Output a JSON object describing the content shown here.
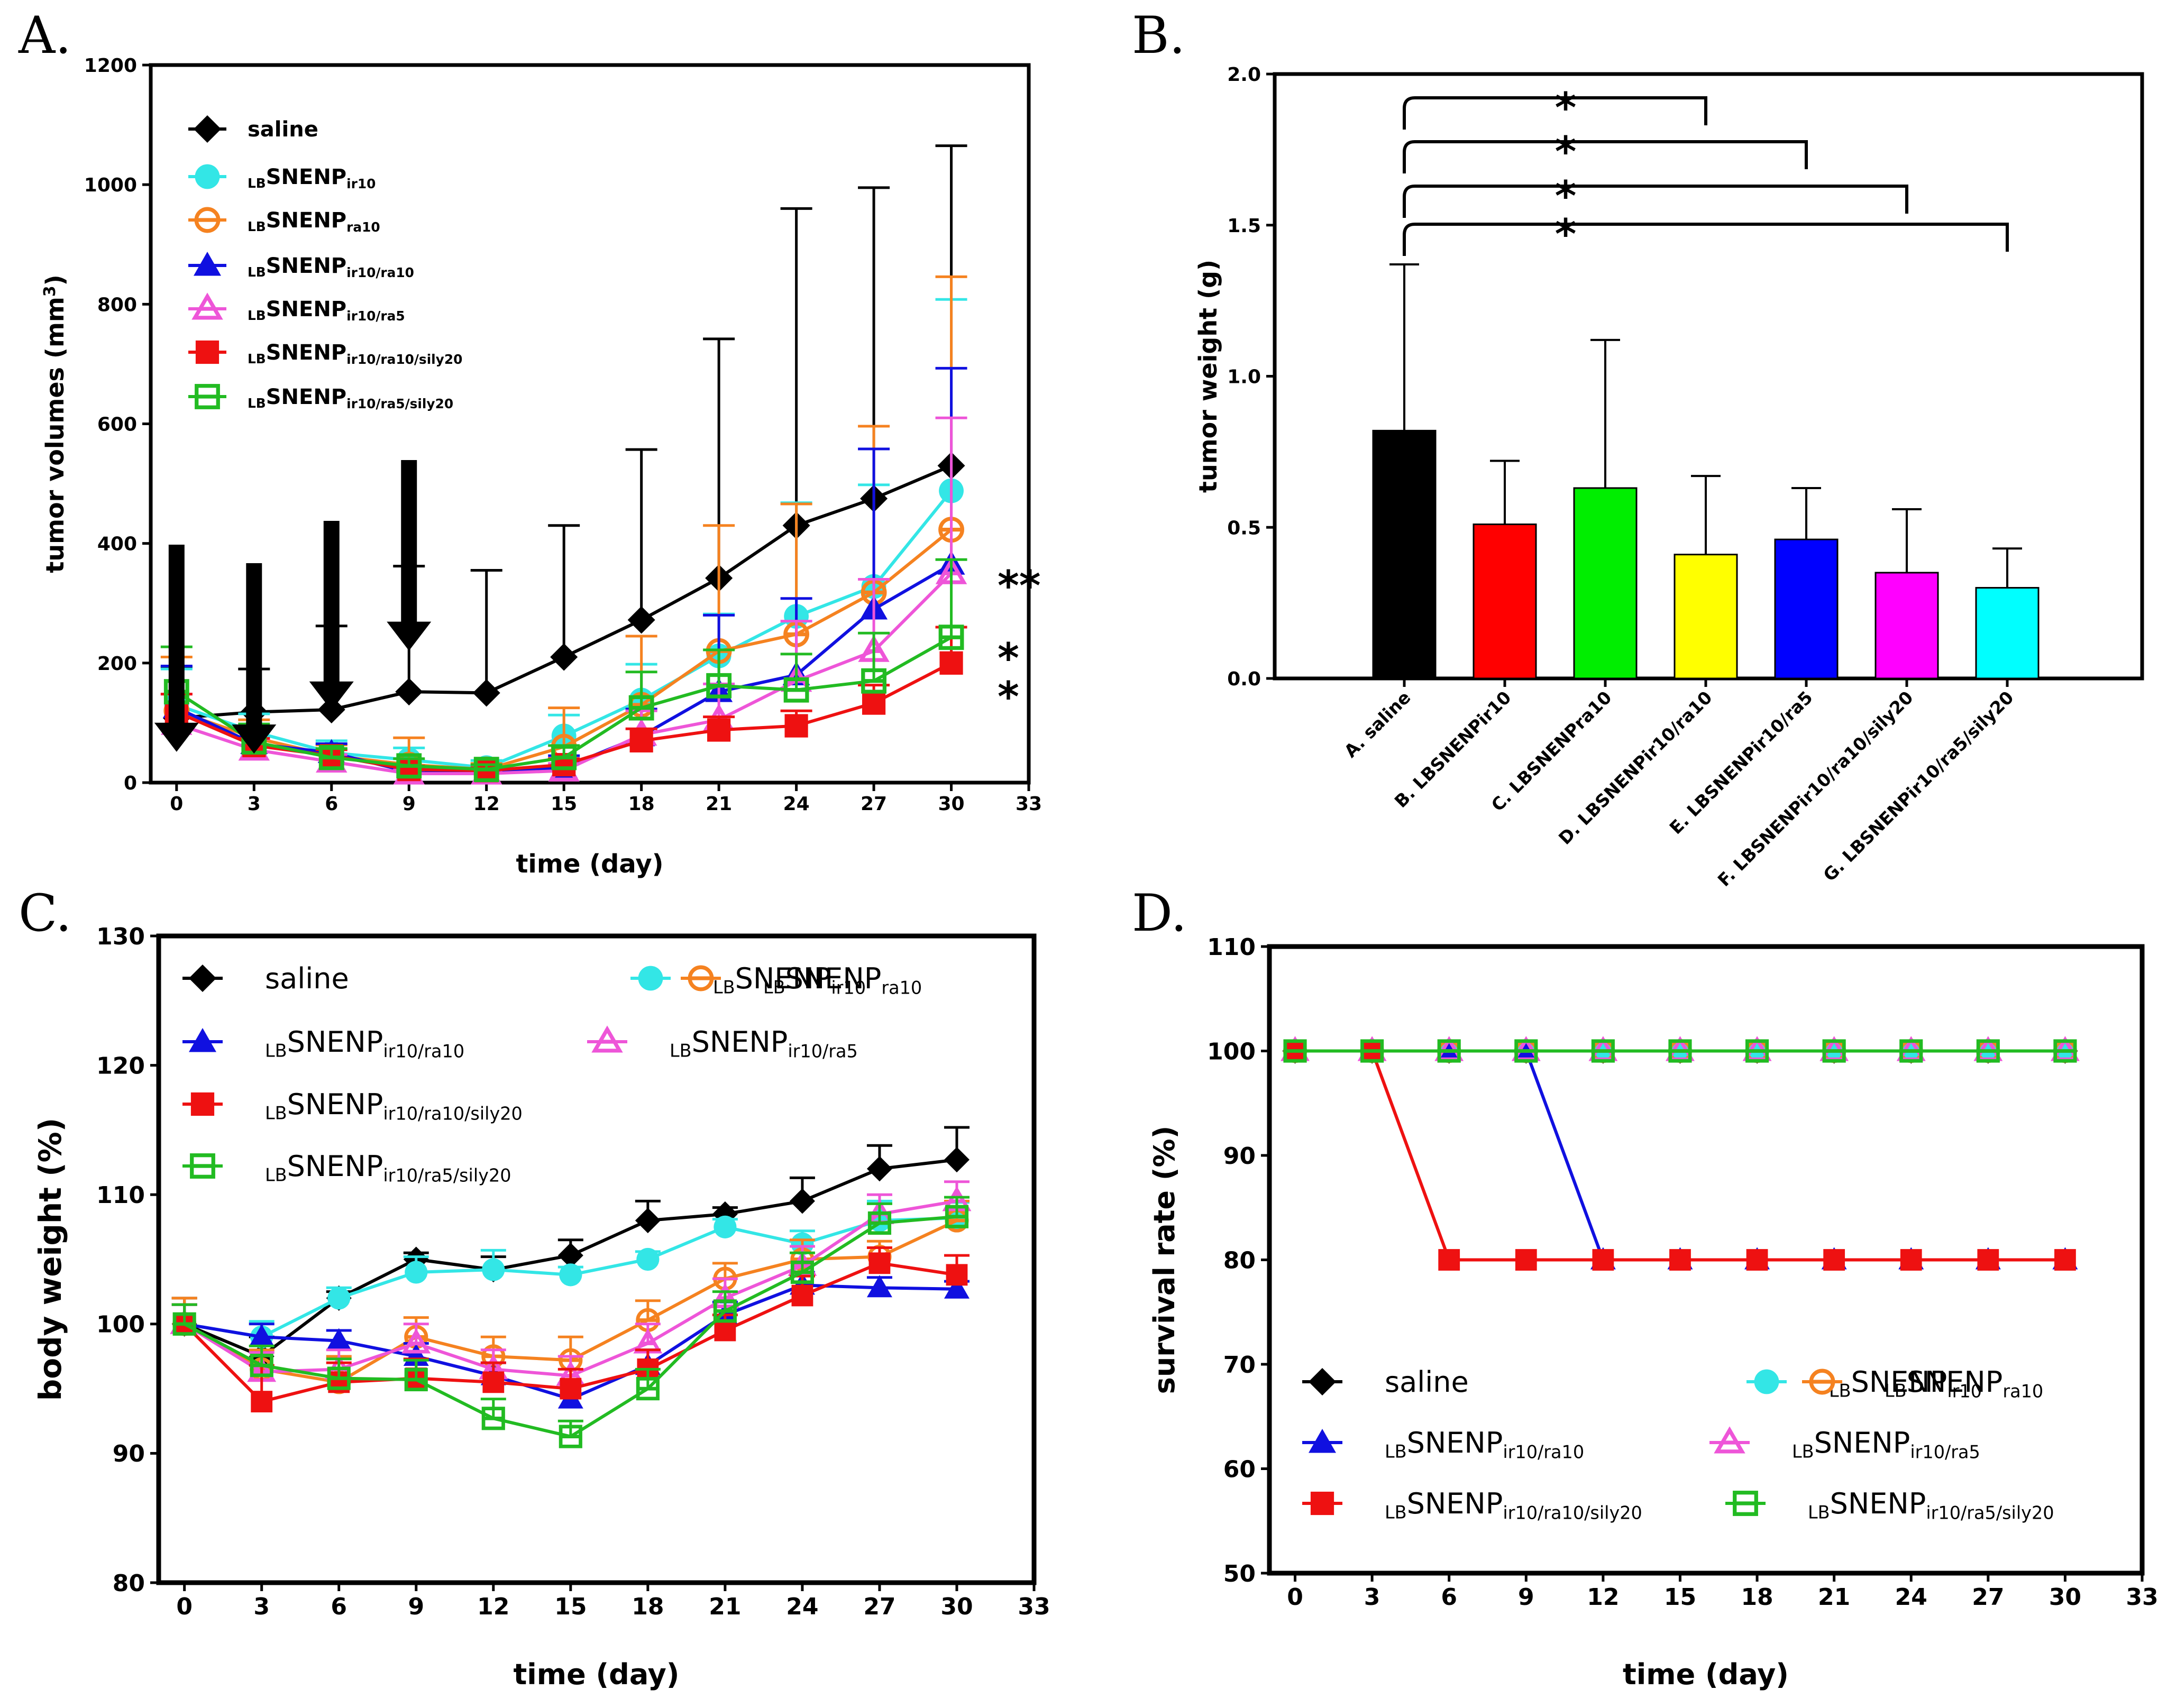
{
  "chart_data": [
    {
      "id": "A",
      "panel_label": "A.",
      "type": "line",
      "xlabel": "time (day)",
      "ylabel": "tumor volumes (mm",
      "ylabel_sup": "3",
      "ylabel_end": ")",
      "xlim": [
        -1,
        33
      ],
      "ylim": [
        0,
        1200
      ],
      "xticks": [
        0,
        3,
        6,
        9,
        12,
        15,
        18,
        21,
        24,
        27,
        30,
        33
      ],
      "yticks": [
        0,
        200,
        400,
        600,
        800,
        1000,
        1200
      ],
      "x": [
        0,
        3,
        6,
        9,
        12,
        15,
        18,
        21,
        24,
        27,
        30
      ],
      "treatment_arrows_days": [
        0,
        3,
        6,
        9
      ],
      "significance": [
        {
          "text": "**",
          "near": "LBSNENPir10/ra10 and LBSNENPir10/ra5"
        },
        {
          "text": "*",
          "near": "LBSNENPir10/ra5/sily20"
        },
        {
          "text": "*",
          "near": "LBSNENPir10/ra10/sily20"
        }
      ],
      "series": [
        {
          "key": "saline",
          "name": "saline",
          "color": "#000000",
          "marker": "diamond",
          "values": [
            108,
            118,
            122,
            152,
            150,
            210,
            272,
            342,
            430,
            475,
            530
          ],
          "err": [
            85,
            72,
            140,
            210,
            205,
            220,
            285,
            400,
            530,
            520,
            535
          ]
        },
        {
          "key": "ir10",
          "name_sub1": "LB",
          "name_main": "SNENP",
          "name_sub2": "ir10",
          "color": "#33E6E6",
          "marker": "circle",
          "values": [
            130,
            85,
            50,
            38,
            25,
            78,
            138,
            212,
            278,
            328,
            488
          ],
          "err": [
            60,
            30,
            20,
            20,
            12,
            35,
            60,
            70,
            190,
            170,
            320
          ]
        },
        {
          "key": "ra10",
          "name_sub1": "LB",
          "name_main": "SNENP",
          "name_sub2": "ra10",
          "color": "#F58220",
          "marker": "circle-open",
          "values": [
            120,
            75,
            45,
            30,
            22,
            60,
            130,
            220,
            248,
            318,
            423
          ],
          "err": [
            90,
            30,
            18,
            45,
            10,
            65,
            115,
            210,
            218,
            278,
            423
          ]
        },
        {
          "key": "ir10ra10",
          "name_sub1": "LB",
          "name_main": "SNENP",
          "name_sub2": "ir10/ra10",
          "color": "#1010E0",
          "marker": "triangle",
          "values": [
            125,
            65,
            50,
            18,
            18,
            25,
            78,
            152,
            180,
            290,
            365
          ],
          "err": [
            70,
            25,
            15,
            8,
            6,
            20,
            45,
            128,
            128,
            268,
            328
          ]
        },
        {
          "key": "ir10ra5",
          "name_sub1": "LB",
          "name_main": "SNENP",
          "name_sub2": "ir10/ra5",
          "color": "#EE55D8",
          "marker": "triangle-open",
          "values": [
            98,
            55,
            35,
            15,
            15,
            20,
            80,
            105,
            170,
            220,
            350
          ],
          "err": [
            50,
            18,
            12,
            6,
            6,
            12,
            40,
            60,
            100,
            120,
            260
          ]
        },
        {
          "key": "ir10ra10sily20",
          "name_sub1": "LB",
          "name_main": "SNENP",
          "name_sub2": "ir10/ra10/sily20",
          "color": "#EE1111",
          "marker": "square",
          "values": [
            118,
            62,
            45,
            22,
            20,
            30,
            70,
            88,
            95,
            133,
            200
          ],
          "err": [
            30,
            12,
            10,
            6,
            5,
            10,
            20,
            22,
            25,
            30,
            60
          ]
        },
        {
          "key": "ir10ra5sily20",
          "name_sub1": "LB",
          "name_main": "SNENP",
          "name_sub2": "ir10/ra5/sily20",
          "color": "#22BB22",
          "marker": "square-open",
          "values": [
            152,
            68,
            42,
            28,
            22,
            42,
            125,
            162,
            155,
            170,
            243
          ],
          "err": [
            75,
            30,
            15,
            12,
            8,
            20,
            60,
            60,
            60,
            80,
            130
          ]
        }
      ]
    },
    {
      "id": "B",
      "panel_label": "B.",
      "type": "bar",
      "ylabel": "tumor weight (g)",
      "ylim": [
        0,
        2.0
      ],
      "yticks": [
        "0.0",
        "0.5",
        "1.0",
        "1.5",
        "2.0"
      ],
      "categories": [
        "A. saline",
        "B. LBSNENPir10",
        "C. LBSNENPra10",
        "D. LBSNENPir10/ra10",
        "E. LBSNENPir10/ra5",
        "F. LBSNENPir10/ra10/sily20",
        "G. LBSNENPir10/ra5/sily20"
      ],
      "values": [
        0.82,
        0.51,
        0.63,
        0.41,
        0.46,
        0.35,
        0.3
      ],
      "err": [
        0.55,
        0.21,
        0.49,
        0.26,
        0.17,
        0.21,
        0.13
      ],
      "colors": [
        "#000000",
        "#FF0000",
        "#00EE00",
        "#FFFF00",
        "#0000FF",
        "#FF00FF",
        "#00FFFF"
      ],
      "brackets": [
        {
          "from": 0,
          "to": 3,
          "label": "*"
        },
        {
          "from": 0,
          "to": 4,
          "label": "*"
        },
        {
          "from": 0,
          "to": 5,
          "label": "*"
        },
        {
          "from": 0,
          "to": 6,
          "label": "*"
        }
      ]
    },
    {
      "id": "C",
      "panel_label": "C.",
      "type": "line",
      "xlabel": "time (day)",
      "ylabel": "body weight (%)",
      "xlim": [
        -1,
        33
      ],
      "ylim": [
        80,
        130
      ],
      "xticks": [
        0,
        3,
        6,
        9,
        12,
        15,
        18,
        21,
        24,
        27,
        30,
        33
      ],
      "yticks": [
        80,
        90,
        100,
        110,
        120,
        130
      ],
      "x": [
        0,
        3,
        6,
        9,
        12,
        15,
        18,
        21,
        24,
        27,
        30
      ],
      "series": [
        {
          "key": "saline",
          "name": "saline",
          "color": "#000000",
          "marker": "diamond",
          "values": [
            100,
            97.5,
            102,
            105,
            104.2,
            105.3,
            108,
            108.5,
            109.5,
            112,
            112.7
          ],
          "err": [
            2,
            1.5,
            0.5,
            0.5,
            1,
            1.2,
            1.5,
            0.5,
            1.8,
            1.8,
            2.5
          ]
        },
        {
          "key": "ir10",
          "name_sub1": "LB",
          "name_main": "SNENP",
          "name_sub2": "ir10",
          "color": "#33E6E6",
          "marker": "circle",
          "values": [
            100,
            99,
            102,
            104,
            104.2,
            103.8,
            105,
            107.5,
            106.2,
            108,
            108.2
          ],
          "err": [
            1.5,
            1.2,
            0.8,
            1.2,
            1.5,
            0.6,
            0.6,
            0.6,
            1,
            1.5,
            1.2
          ]
        },
        {
          "key": "ra10",
          "name_sub1": "LB",
          "name_main": "SNENP",
          "name_sub2": "ra10",
          "color": "#F58220",
          "marker": "circle-open",
          "values": [
            100,
            96.5,
            95.5,
            99,
            97.5,
            97.2,
            100.3,
            103.5,
            105,
            105.2,
            108
          ],
          "err": [
            2,
            1.5,
            2,
            1.5,
            1.5,
            1.8,
            1.5,
            1.2,
            1.5,
            1.2,
            1.5
          ]
        },
        {
          "key": "ir10ra10",
          "name_sub1": "LB",
          "name_main": "SNENP",
          "name_sub2": "ir10/ra10",
          "color": "#1010E0",
          "marker": "triangle",
          "values": [
            100,
            99,
            98.7,
            97.5,
            96,
            94.2,
            96.8,
            100.7,
            103,
            102.8,
            102.7
          ],
          "err": [
            1.5,
            1,
            0.8,
            1,
            1,
            1.2,
            1.2,
            1,
            1,
            0.8,
            0.6
          ]
        },
        {
          "key": "ir10ra5",
          "name_sub1": "LB",
          "name_main": "SNENP",
          "name_sub2": "ir10/ra5",
          "color": "#EE55D8",
          "marker": "triangle-open",
          "values": [
            100,
            96.3,
            96.5,
            98.5,
            96.5,
            96,
            98.5,
            102,
            104.5,
            108.5,
            109.5
          ],
          "err": [
            1.5,
            1.5,
            1.5,
            1.5,
            1.5,
            1.5,
            1.5,
            1.5,
            1.5,
            1.5,
            1.5
          ]
        },
        {
          "key": "ir10ra10sily20",
          "name_sub1": "LB",
          "name_main": "SNENP",
          "name_sub2": "ir10/ra10/sily20",
          "color": "#EE1111",
          "marker": "square",
          "values": [
            100,
            94,
            95.5,
            95.8,
            95.5,
            95,
            96.5,
            99.5,
            102.2,
            104.7,
            103.8
          ],
          "err": [
            1.5,
            2.8,
            1.5,
            1.5,
            1.5,
            1.5,
            1.5,
            1.2,
            1.5,
            1.2,
            1.5
          ]
        },
        {
          "key": "ir10ra5sily20",
          "name_sub1": "LB",
          "name_main": "SNENP",
          "name_sub2": "ir10/ra5/sily20",
          "color": "#22BB22",
          "marker": "square-open",
          "values": [
            100,
            96.8,
            95.8,
            95.7,
            92.7,
            91.3,
            95,
            101,
            104,
            107.8,
            108.3
          ],
          "err": [
            1.5,
            1.5,
            1.5,
            1.5,
            1.5,
            1.2,
            1.5,
            1.5,
            1.5,
            1.5,
            1.5
          ]
        }
      ]
    },
    {
      "id": "D",
      "panel_label": "D.",
      "type": "line",
      "xlabel": "time (day)",
      "ylabel": "survival rate (%)",
      "xlim": [
        -1,
        33
      ],
      "ylim": [
        50,
        110
      ],
      "xticks": [
        0,
        3,
        6,
        9,
        12,
        15,
        18,
        21,
        24,
        27,
        30,
        33
      ],
      "yticks": [
        50,
        60,
        70,
        80,
        90,
        100,
        110
      ],
      "x": [
        0,
        3,
        6,
        9,
        12,
        15,
        18,
        21,
        24,
        27,
        30
      ],
      "series": [
        {
          "key": "saline",
          "name": "saline",
          "color": "#000000",
          "marker": "diamond",
          "values": [
            100,
            100,
            100,
            100,
            100,
            100,
            100,
            100,
            100,
            100,
            100
          ]
        },
        {
          "key": "ir10",
          "name_sub1": "LB",
          "name_main": "SNENP",
          "name_sub2": "ir10",
          "color": "#33E6E6",
          "marker": "circle",
          "values": [
            100,
            100,
            100,
            100,
            100,
            100,
            100,
            100,
            100,
            100,
            100
          ]
        },
        {
          "key": "ra10",
          "name_sub1": "LB",
          "name_main": "SNENP",
          "name_sub2": "ra10",
          "color": "#F58220",
          "marker": "circle-open",
          "values": [
            100,
            100,
            100,
            100,
            100,
            100,
            100,
            100,
            100,
            100,
            100
          ]
        },
        {
          "key": "ir10ra10",
          "name_sub1": "LB",
          "name_main": "SNENP",
          "name_sub2": "ir10/ra10",
          "color": "#1010E0",
          "marker": "triangle",
          "values": [
            100,
            100,
            100,
            100,
            80,
            80,
            80,
            80,
            80,
            80,
            80
          ]
        },
        {
          "key": "ir10ra5",
          "name_sub1": "LB",
          "name_main": "SNENP",
          "name_sub2": "ir10/ra5",
          "color": "#EE55D8",
          "marker": "triangle-open",
          "values": [
            100,
            100,
            100,
            100,
            100,
            100,
            100,
            100,
            100,
            100,
            100
          ]
        },
        {
          "key": "ir10ra10sily20",
          "name_sub1": "LB",
          "name_main": "SNENP",
          "name_sub2": "ir10/ra10/sily20",
          "color": "#EE1111",
          "marker": "square",
          "values": [
            100,
            100,
            80,
            80,
            80,
            80,
            80,
            80,
            80,
            80,
            80
          ]
        },
        {
          "key": "ir10ra5sily20",
          "name_sub1": "LB",
          "name_main": "SNENP",
          "name_sub2": "ir10/ra5/sily20",
          "color": "#22BB22",
          "marker": "square-open",
          "values": [
            100,
            100,
            100,
            100,
            100,
            100,
            100,
            100,
            100,
            100,
            100
          ]
        }
      ]
    }
  ]
}
